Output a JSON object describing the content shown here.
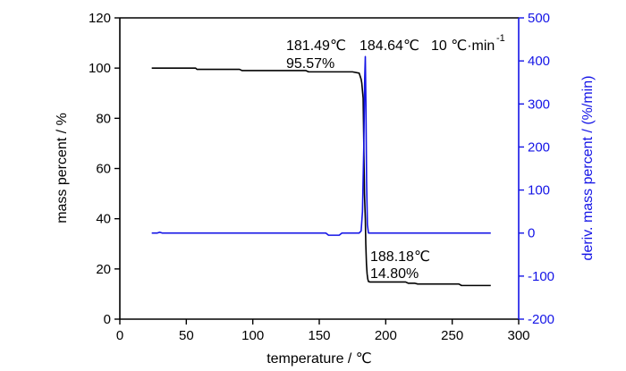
{
  "chart_data": {
    "type": "line",
    "xlabel": "temperature / ℃",
    "ylabel_left": "mass percent / %",
    "ylabel_right": "deriv. mass percent / (%/min)",
    "xlim": [
      0,
      300
    ],
    "ylim_left": [
      0,
      120
    ],
    "ylim_right": [
      -200,
      500
    ],
    "x_ticks": [
      0,
      50,
      100,
      150,
      200,
      250,
      300
    ],
    "y_left_ticks": [
      0,
      20,
      40,
      60,
      80,
      100,
      120
    ],
    "y_right_ticks": [
      -200,
      -100,
      0,
      100,
      200,
      300,
      400,
      500
    ],
    "grid": false,
    "colors": {
      "mass": "#000000",
      "deriv": "#1414e6",
      "right_axis": "#1414e6",
      "left_axis": "#000000"
    },
    "series": [
      {
        "axis": "left",
        "x": [
          24,
          25,
          57,
          58,
          90,
          92,
          140,
          142,
          175,
          180,
          181.49,
          182,
          183,
          183.5,
          184,
          184.64,
          185,
          185.5,
          186,
          186.5,
          187,
          188.18,
          189,
          215,
          217,
          222,
          224,
          255,
          257,
          279
        ],
        "y": [
          100,
          100,
          100,
          99.5,
          99.5,
          99,
          99,
          98.5,
          98.5,
          98,
          95.57,
          94,
          88,
          70,
          50,
          40,
          30,
          22,
          18,
          16,
          15,
          14.8,
          14.8,
          14.8,
          14.3,
          14.3,
          14.0,
          14.0,
          13.4,
          13.4
        ]
      },
      {
        "axis": "right",
        "x": [
          24,
          28,
          30,
          32,
          60,
          155,
          157,
          165,
          167,
          180,
          181.5,
          182.5,
          183.5,
          184.2,
          184.64,
          185.1,
          185.6,
          186.2,
          187,
          188,
          200,
          279
        ],
        "y": [
          0,
          0,
          2,
          0,
          0,
          0,
          -5,
          -5,
          0,
          0,
          5,
          50,
          200,
          360,
          410,
          300,
          120,
          20,
          0,
          0,
          0,
          0
        ]
      }
    ],
    "annotations": {
      "a1_temp": "181.49℃",
      "a1_mass": "95.57%",
      "a2_temp": "184.64℃",
      "rate": "10 ℃·min",
      "rate_sup": "-1",
      "a3_temp": "188.18℃",
      "a3_mass": "14.80%"
    }
  }
}
